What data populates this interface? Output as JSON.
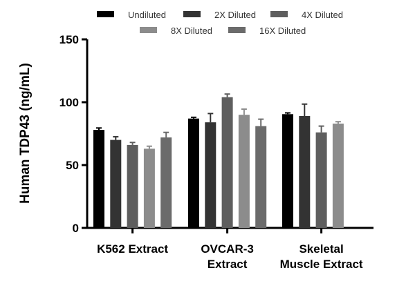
{
  "chart_data": {
    "type": "bar",
    "title": "",
    "xlabel": "",
    "ylabel": "Human TDP43 (ng/mL)",
    "ylim": [
      0,
      150
    ],
    "yticks": [
      0,
      50,
      100,
      150
    ],
    "grid": false,
    "legend_position": "top",
    "categories": [
      [
        "K562 Extract"
      ],
      [
        "OVCAR-3",
        "Extract"
      ],
      [
        "Skeletal",
        "Muscle Extract"
      ]
    ],
    "series": [
      {
        "name": "Undiluted",
        "color": "#000000",
        "values": [
          78,
          87,
          90.5
        ],
        "errors": [
          1.5,
          1,
          1
        ]
      },
      {
        "name": "2X Diluted",
        "color": "#333333",
        "values": [
          70,
          84,
          89
        ],
        "errors": [
          2.5,
          7,
          9.5
        ]
      },
      {
        "name": "4X Diluted",
        "color": "#5e5e5e",
        "values": [
          66,
          104,
          76
        ],
        "errors": [
          2,
          2.5,
          5
        ]
      },
      {
        "name": "8X Diluted",
        "color": "#8c8c8c",
        "values": [
          63,
          90,
          83
        ],
        "errors": [
          2,
          4.5,
          1.5
        ]
      },
      {
        "name": "16X Diluted",
        "color": "#6b6b6b",
        "values": [
          72,
          81,
          null
        ],
        "errors": [
          4,
          5.5,
          null
        ]
      }
    ]
  }
}
